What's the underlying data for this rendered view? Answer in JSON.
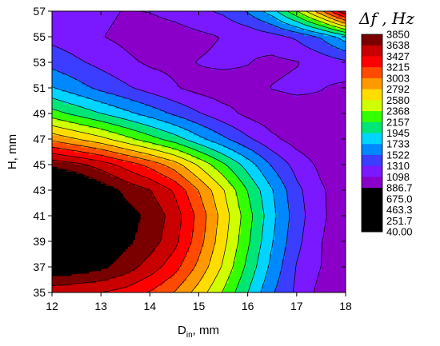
{
  "chart_data": {
    "type": "heatmap",
    "title": "",
    "xlabel": {
      "main": "D",
      "sub": "in",
      "suffix": ", mm"
    },
    "ylabel": "H, mm",
    "xlim": [
      12,
      18
    ],
    "ylim": [
      35,
      57
    ],
    "x_ticks": [
      "12",
      "13",
      "14",
      "15",
      "16",
      "17",
      "18"
    ],
    "y_ticks": [
      "35",
      "37",
      "39",
      "41",
      "43",
      "45",
      "47",
      "49",
      "51",
      "53",
      "55",
      "57"
    ],
    "x": [
      12,
      12.5,
      13,
      13.5,
      14,
      14.5,
      15,
      15.5,
      16,
      16.5,
      17,
      17.5,
      18
    ],
    "y": [
      35,
      37,
      39,
      41,
      43,
      45,
      47,
      49,
      51,
      53,
      55,
      57
    ],
    "z": [
      [
        2650,
        2600,
        2580,
        2500,
        2350,
        2150,
        1850,
        1500,
        1100,
        700,
        420,
        180,
        100
      ],
      [
        3200,
        3150,
        3050,
        2900,
        2700,
        2450,
        2100,
        1700,
        1250,
        820,
        450,
        250,
        100
      ],
      [
        3700,
        3500,
        3250,
        3050,
        2900,
        2650,
        2250,
        1800,
        1350,
        900,
        520,
        260,
        100
      ],
      [
        3850,
        3600,
        3300,
        3100,
        2950,
        2700,
        2300,
        1850,
        1400,
        950,
        560,
        290,
        120
      ],
      [
        3550,
        3350,
        3150,
        2950,
        2800,
        2550,
        2150,
        1750,
        1300,
        900,
        520,
        280,
        120
      ],
      [
        2950,
        2850,
        2700,
        2500,
        2300,
        2050,
        1700,
        1350,
        1000,
        650,
        380,
        200,
        100
      ],
      [
        2100,
        1950,
        1800,
        1600,
        1400,
        1200,
        950,
        720,
        500,
        300,
        160,
        90,
        60
      ],
      [
        1400,
        1250,
        1100,
        950,
        800,
        640,
        480,
        330,
        200,
        110,
        130,
        180,
        120
      ],
      [
        900,
        760,
        620,
        500,
        380,
        270,
        180,
        130,
        180,
        260,
        300,
        260,
        200
      ],
      [
        600,
        500,
        400,
        300,
        220,
        200,
        260,
        300,
        260,
        200,
        240,
        330,
        420
      ],
      [
        400,
        330,
        260,
        200,
        120,
        140,
        200,
        260,
        300,
        380,
        500,
        700,
        1000
      ],
      [
        460,
        380,
        300,
        240,
        260,
        330,
        420,
        500,
        700,
        1000,
        1500,
        2100,
        2800
      ]
    ],
    "legend": {
      "title": "Δf , Hz",
      "placement": "right",
      "levels": [
        "3850",
        "3638",
        "3427",
        "3215",
        "3003",
        "2792",
        "2580",
        "2368",
        "2157",
        "1945",
        "1733",
        "1522",
        "1310",
        "1098",
        "886.7",
        "675.0",
        "463.3",
        "251.7",
        "40.00"
      ]
    },
    "colormap": [
      "#7a0000",
      "#c80000",
      "#ff0000",
      "#ff4a00",
      "#ff9900",
      "#ffdd00",
      "#cfff00",
      "#33ff00",
      "#00e676",
      "#00d5ff",
      "#0088ff",
      "#3b3dff",
      "#7a18ff",
      "#8a00c8"
    ]
  }
}
